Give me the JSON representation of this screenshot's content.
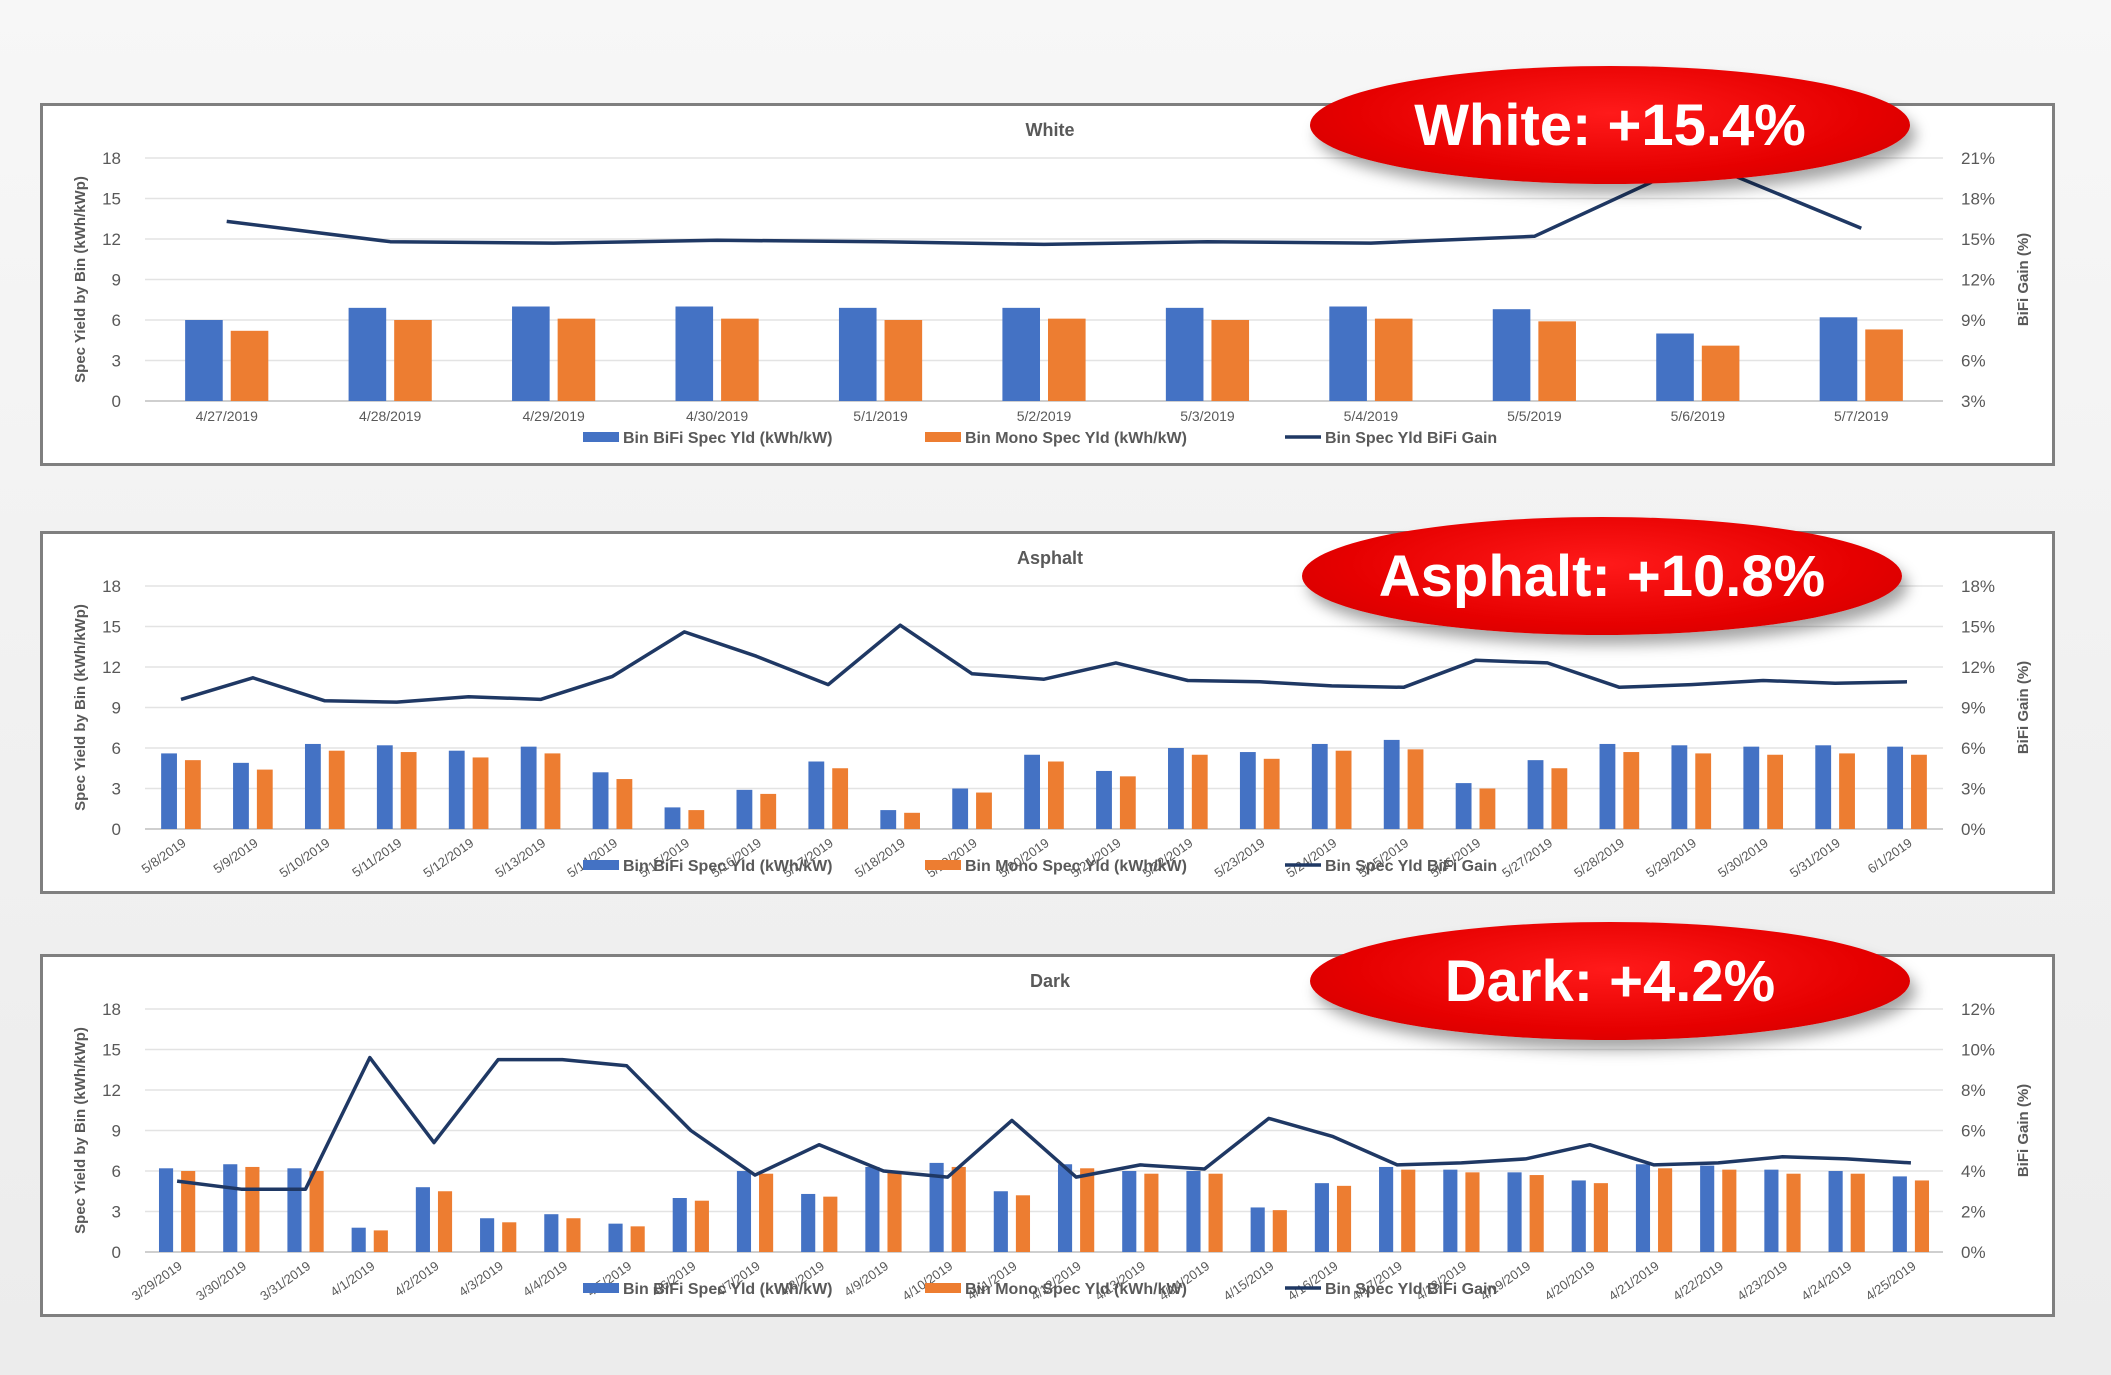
{
  "colors": {
    "bifi": "#4472c4",
    "mono": "#ed7d31",
    "gain": "#1f3864"
  },
  "chart_data": [
    {
      "type": "bar",
      "title": "White",
      "ylabel": "Spec Yield by Bin (kWh/kWp)",
      "y2label": "BiFi Gain (%)",
      "ylim": [
        0,
        18
      ],
      "yticks": [
        "0",
        "3",
        "6",
        "9",
        "12",
        "15",
        "18"
      ],
      "y2lim": [
        3,
        21
      ],
      "y2ticks": [
        "3%",
        "6%",
        "9%",
        "12%",
        "15%",
        "18%",
        "21%"
      ],
      "grid": true,
      "legend": "bottom",
      "callout": "White: +15.4%",
      "categories": [
        "4/27/2019",
        "4/28/2019",
        "4/29/2019",
        "4/30/2019",
        "5/1/2019",
        "5/2/2019",
        "5/3/2019",
        "5/4/2019",
        "5/5/2019",
        "5/6/2019",
        "5/7/2019"
      ],
      "series": [
        {
          "name": "Bin BiFi Spec Yld (kWh/kW)",
          "type": "bar",
          "axis": "left",
          "values": [
            6.0,
            6.9,
            7.0,
            7.0,
            6.9,
            6.9,
            6.9,
            7.0,
            6.8,
            5.0,
            6.2
          ]
        },
        {
          "name": "Bin Mono Spec Yld (kWh/kW)",
          "type": "bar",
          "axis": "left",
          "values": [
            5.2,
            6.0,
            6.1,
            6.1,
            6.0,
            6.1,
            6.0,
            6.1,
            5.9,
            4.1,
            5.3
          ]
        },
        {
          "name": "Bin Spec Yld BiFi Gain",
          "type": "line",
          "axis": "right",
          "values": [
            16.3,
            14.8,
            14.7,
            14.9,
            14.8,
            14.6,
            14.8,
            14.7,
            15.2,
            20.8,
            15.8
          ]
        }
      ]
    },
    {
      "type": "bar",
      "title": "Asphalt",
      "ylabel": "Spec Yield by Bin (kWh/kWp)",
      "y2label": "BiFi Gain (%)",
      "ylim": [
        0,
        18
      ],
      "yticks": [
        "0",
        "3",
        "6",
        "9",
        "12",
        "15",
        "18"
      ],
      "y2lim": [
        0,
        18
      ],
      "y2ticks": [
        "0%",
        "3%",
        "6%",
        "9%",
        "12%",
        "15%",
        "18%"
      ],
      "grid": true,
      "legend": "bottom",
      "callout": "Asphalt: +10.8%",
      "categories": [
        "5/8/2019",
        "5/9/2019",
        "5/10/2019",
        "5/11/2019",
        "5/12/2019",
        "5/13/2019",
        "5/14/2019",
        "5/15/2019",
        "5/16/2019",
        "5/17/2019",
        "5/18/2019",
        "5/19/2019",
        "5/20/2019",
        "5/21/2019",
        "5/22/2019",
        "5/23/2019",
        "5/24/2019",
        "5/25/2019",
        "5/26/2019",
        "5/27/2019",
        "5/28/2019",
        "5/29/2019",
        "5/30/2019",
        "5/31/2019",
        "6/1/2019"
      ],
      "series": [
        {
          "name": "Bin BiFi Spec Yld (kWh/kW)",
          "type": "bar",
          "axis": "left",
          "values": [
            5.6,
            4.9,
            6.3,
            6.2,
            5.8,
            6.1,
            4.2,
            1.6,
            2.9,
            5.0,
            1.4,
            3.0,
            5.5,
            4.3,
            6.0,
            5.7,
            6.3,
            6.6,
            3.4,
            5.1,
            6.3,
            6.2,
            6.1,
            6.2,
            6.1
          ]
        },
        {
          "name": "Bin Mono Spec Yld (kWh/kW)",
          "type": "bar",
          "axis": "left",
          "values": [
            5.1,
            4.4,
            5.8,
            5.7,
            5.3,
            5.6,
            3.7,
            1.4,
            2.6,
            4.5,
            1.2,
            2.7,
            5.0,
            3.9,
            5.5,
            5.2,
            5.8,
            5.9,
            3.0,
            4.5,
            5.7,
            5.6,
            5.5,
            5.6,
            5.5
          ]
        },
        {
          "name": "Bin Spec Yld BiFi Gain",
          "type": "line",
          "axis": "right",
          "values": [
            9.6,
            11.2,
            9.5,
            9.4,
            9.8,
            9.6,
            11.3,
            14.6,
            12.8,
            10.7,
            15.1,
            11.5,
            11.1,
            12.3,
            11.0,
            10.9,
            10.6,
            10.5,
            12.5,
            12.3,
            10.5,
            10.7,
            11.0,
            10.8,
            10.9
          ]
        }
      ]
    },
    {
      "type": "bar",
      "title": "Dark",
      "ylabel": "Spec Yield by Bin (kWh/kWp)",
      "y2label": "BiFi Gain (%)",
      "ylim": [
        0,
        18
      ],
      "yticks": [
        "0",
        "3",
        "6",
        "9",
        "12",
        "15",
        "18"
      ],
      "y2lim": [
        0,
        12
      ],
      "y2ticks": [
        "0%",
        "2%",
        "4%",
        "6%",
        "8%",
        "10%",
        "12%"
      ],
      "grid": true,
      "legend": "bottom",
      "callout": "Dark: +4.2%",
      "categories": [
        "3/29/2019",
        "3/30/2019",
        "3/31/2019",
        "4/1/2019",
        "4/2/2019",
        "4/3/2019",
        "4/4/2019",
        "4/5/2019",
        "4/6/2019",
        "4/7/2019",
        "4/8/2019",
        "4/9/2019",
        "4/10/2019",
        "4/11/2019",
        "4/12/2019",
        "4/13/2019",
        "4/14/2019",
        "4/15/2019",
        "4/16/2019",
        "4/17/2019",
        "4/18/2019",
        "4/19/2019",
        "4/20/2019",
        "4/21/2019",
        "4/22/2019",
        "4/23/2019",
        "4/24/2019",
        "4/25/2019"
      ],
      "series": [
        {
          "name": "Bin BiFi Spec Yld (kWh/kW)",
          "type": "bar",
          "axis": "left",
          "values": [
            6.2,
            6.5,
            6.2,
            1.8,
            4.8,
            2.5,
            2.8,
            2.1,
            4.0,
            6.0,
            4.3,
            6.3,
            6.6,
            4.5,
            6.5,
            6.0,
            6.0,
            3.3,
            5.1,
            6.3,
            6.1,
            5.9,
            5.3,
            6.5,
            6.4,
            6.1,
            6.0,
            5.6
          ]
        },
        {
          "name": "Bin Mono Spec Yld (kWh/kW)",
          "type": "bar",
          "axis": "left",
          "values": [
            6.0,
            6.3,
            6.0,
            1.6,
            4.5,
            2.2,
            2.5,
            1.9,
            3.8,
            5.8,
            4.1,
            6.0,
            6.3,
            4.2,
            6.2,
            5.8,
            5.8,
            3.1,
            4.9,
            6.1,
            5.9,
            5.7,
            5.1,
            6.2,
            6.1,
            5.8,
            5.8,
            5.3
          ]
        },
        {
          "name": "Bin Spec Yld BiFi Gain",
          "type": "line",
          "axis": "right",
          "values": [
            3.5,
            3.1,
            3.1,
            9.6,
            5.4,
            9.5,
            9.5,
            9.2,
            6.0,
            3.8,
            5.3,
            4.0,
            3.7,
            6.5,
            3.7,
            4.3,
            4.1,
            6.6,
            5.7,
            4.3,
            4.4,
            4.6,
            5.3,
            4.3,
            4.4,
            4.7,
            4.6,
            4.4
          ]
        }
      ]
    }
  ]
}
